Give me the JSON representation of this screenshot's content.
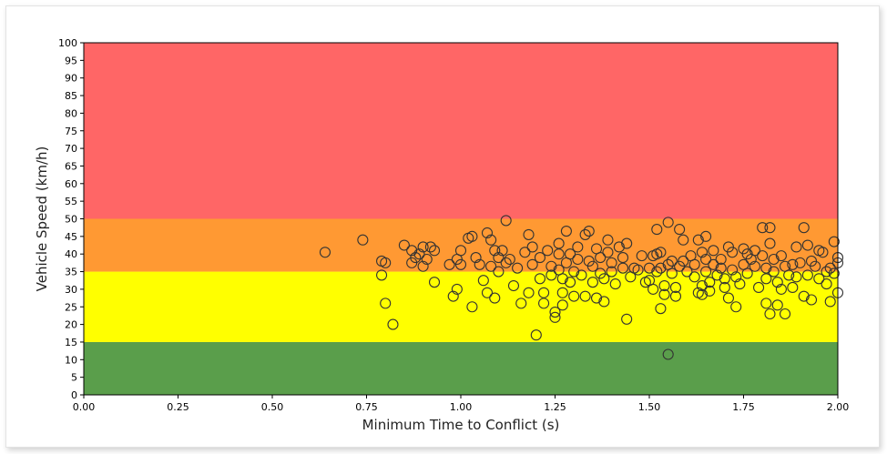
{
  "chart_data": {
    "type": "scatter",
    "title": "",
    "xlabel": "Minimum Time to Conflict (s)",
    "ylabel": "Vehicle Speed (km/h)",
    "xlim": [
      0,
      2
    ],
    "ylim": [
      0,
      100
    ],
    "x_ticks": [
      "0.00",
      "0.25",
      "0.50",
      "0.75",
      "1.00",
      "1.25",
      "1.50",
      "1.75",
      "2.00"
    ],
    "y_ticks": [
      "0",
      "5",
      "10",
      "15",
      "20",
      "25",
      "30",
      "35",
      "40",
      "45",
      "50",
      "55",
      "60",
      "65",
      "70",
      "75",
      "80",
      "85",
      "90",
      "95",
      "100"
    ],
    "grid": false,
    "legend": "none",
    "bands": [
      {
        "from": 0,
        "to": 15,
        "color": "#5a9e4b"
      },
      {
        "from": 15,
        "to": 35,
        "color": "#ffff00"
      },
      {
        "from": 35,
        "to": 50,
        "color": "#ff9933"
      },
      {
        "from": 50,
        "to": 100,
        "color": "#ff6666"
      }
    ],
    "marker": {
      "shape": "open-circle",
      "edge_color": "#333333"
    },
    "points": [
      [
        0.64,
        40.5
      ],
      [
        0.74,
        44
      ],
      [
        0.79,
        38
      ],
      [
        0.79,
        34
      ],
      [
        0.8,
        26
      ],
      [
        0.8,
        37.5
      ],
      [
        0.82,
        20
      ],
      [
        0.85,
        42.5
      ],
      [
        0.87,
        41
      ],
      [
        0.87,
        37.5
      ],
      [
        0.88,
        39
      ],
      [
        0.89,
        40
      ],
      [
        0.9,
        42
      ],
      [
        0.9,
        36.5
      ],
      [
        0.91,
        38.5
      ],
      [
        0.92,
        42
      ],
      [
        0.93,
        41
      ],
      [
        0.93,
        32
      ],
      [
        0.97,
        37
      ],
      [
        0.98,
        28
      ],
      [
        0.99,
        38.5
      ],
      [
        0.99,
        30
      ],
      [
        1.0,
        41
      ],
      [
        1.0,
        37
      ],
      [
        1.02,
        44.5
      ],
      [
        1.03,
        45
      ],
      [
        1.03,
        25
      ],
      [
        1.04,
        39
      ],
      [
        1.05,
        37
      ],
      [
        1.06,
        32.5
      ],
      [
        1.07,
        46
      ],
      [
        1.07,
        29
      ],
      [
        1.08,
        44
      ],
      [
        1.08,
        36.5
      ],
      [
        1.09,
        41
      ],
      [
        1.09,
        27.5
      ],
      [
        1.1,
        39
      ],
      [
        1.1,
        35
      ],
      [
        1.11,
        41
      ],
      [
        1.12,
        49.5
      ],
      [
        1.12,
        37.5
      ],
      [
        1.13,
        38.5
      ],
      [
        1.14,
        31
      ],
      [
        1.15,
        36
      ],
      [
        1.16,
        26
      ],
      [
        1.17,
        40.5
      ],
      [
        1.18,
        45.5
      ],
      [
        1.18,
        29
      ],
      [
        1.19,
        42
      ],
      [
        1.19,
        37
      ],
      [
        1.2,
        17
      ],
      [
        1.21,
        39
      ],
      [
        1.21,
        33
      ],
      [
        1.22,
        29
      ],
      [
        1.22,
        26
      ],
      [
        1.23,
        41
      ],
      [
        1.24,
        36.5
      ],
      [
        1.24,
        34
      ],
      [
        1.25,
        22
      ],
      [
        1.25,
        23.5
      ],
      [
        1.26,
        43
      ],
      [
        1.26,
        40
      ],
      [
        1.26,
        35.5
      ],
      [
        1.27,
        33
      ],
      [
        1.27,
        29
      ],
      [
        1.27,
        25.5
      ],
      [
        1.28,
        46.5
      ],
      [
        1.28,
        37.5
      ],
      [
        1.29,
        40
      ],
      [
        1.29,
        32
      ],
      [
        1.3,
        35
      ],
      [
        1.3,
        28
      ],
      [
        1.31,
        42
      ],
      [
        1.31,
        38.5
      ],
      [
        1.32,
        34
      ],
      [
        1.33,
        45.5
      ],
      [
        1.33,
        28
      ],
      [
        1.34,
        46.5
      ],
      [
        1.34,
        38
      ],
      [
        1.35,
        32
      ],
      [
        1.35,
        36.5
      ],
      [
        1.36,
        41.5
      ],
      [
        1.36,
        27.5
      ],
      [
        1.37,
        39
      ],
      [
        1.37,
        34.5
      ],
      [
        1.38,
        33
      ],
      [
        1.38,
        26.5
      ],
      [
        1.39,
        44
      ],
      [
        1.39,
        40.5
      ],
      [
        1.4,
        37.5
      ],
      [
        1.4,
        35
      ],
      [
        1.41,
        31.5
      ],
      [
        1.42,
        42
      ],
      [
        1.43,
        39
      ],
      [
        1.43,
        36
      ],
      [
        1.44,
        43
      ],
      [
        1.44,
        21.5
      ],
      [
        1.45,
        33.5
      ],
      [
        1.46,
        36
      ],
      [
        1.47,
        35.5
      ],
      [
        1.48,
        39.5
      ],
      [
        1.49,
        32
      ],
      [
        1.5,
        36
      ],
      [
        1.5,
        32.5
      ],
      [
        1.51,
        39.5
      ],
      [
        1.51,
        30
      ],
      [
        1.52,
        40
      ],
      [
        1.52,
        47
      ],
      [
        1.52,
        35
      ],
      [
        1.53,
        40.5
      ],
      [
        1.53,
        36
      ],
      [
        1.53,
        24.5
      ],
      [
        1.54,
        31
      ],
      [
        1.54,
        28.5
      ],
      [
        1.55,
        49
      ],
      [
        1.55,
        37
      ],
      [
        1.55,
        11.5
      ],
      [
        1.56,
        38
      ],
      [
        1.56,
        34.5
      ],
      [
        1.57,
        30.5
      ],
      [
        1.57,
        28
      ],
      [
        1.58,
        47
      ],
      [
        1.58,
        36.5
      ],
      [
        1.59,
        44
      ],
      [
        1.59,
        38
      ],
      [
        1.6,
        35
      ],
      [
        1.61,
        39.5
      ],
      [
        1.62,
        37
      ],
      [
        1.62,
        33.5
      ],
      [
        1.63,
        44
      ],
      [
        1.63,
        29
      ],
      [
        1.64,
        40.5
      ],
      [
        1.64,
        31
      ],
      [
        1.64,
        28.5
      ],
      [
        1.65,
        45
      ],
      [
        1.65,
        38.5
      ],
      [
        1.65,
        35
      ],
      [
        1.66,
        32
      ],
      [
        1.66,
        29.5
      ],
      [
        1.67,
        37
      ],
      [
        1.67,
        41
      ],
      [
        1.68,
        34
      ],
      [
        1.69,
        38.5
      ],
      [
        1.69,
        36
      ],
      [
        1.7,
        33
      ],
      [
        1.7,
        30.5
      ],
      [
        1.71,
        42
      ],
      [
        1.71,
        27.5
      ],
      [
        1.72,
        40.5
      ],
      [
        1.72,
        35.5
      ],
      [
        1.73,
        25
      ],
      [
        1.73,
        33.5
      ],
      [
        1.74,
        31.5
      ],
      [
        1.75,
        37
      ],
      [
        1.75,
        41.5
      ],
      [
        1.76,
        40
      ],
      [
        1.76,
        34.5
      ],
      [
        1.77,
        38.5
      ],
      [
        1.78,
        36.5
      ],
      [
        1.78,
        41
      ],
      [
        1.79,
        30.5
      ],
      [
        1.8,
        47.5
      ],
      [
        1.8,
        39.5
      ],
      [
        1.81,
        36
      ],
      [
        1.81,
        33
      ],
      [
        1.81,
        26
      ],
      [
        1.82,
        47.5
      ],
      [
        1.82,
        43
      ],
      [
        1.82,
        23
      ],
      [
        1.83,
        38.5
      ],
      [
        1.83,
        35
      ],
      [
        1.84,
        32
      ],
      [
        1.84,
        25.5
      ],
      [
        1.85,
        39.5
      ],
      [
        1.85,
        30
      ],
      [
        1.86,
        36.5
      ],
      [
        1.86,
        23
      ],
      [
        1.87,
        34
      ],
      [
        1.88,
        37
      ],
      [
        1.88,
        30.5
      ],
      [
        1.89,
        42
      ],
      [
        1.89,
        33.5
      ],
      [
        1.9,
        37.5
      ],
      [
        1.91,
        47.5
      ],
      [
        1.91,
        28
      ],
      [
        1.92,
        42.5
      ],
      [
        1.92,
        34
      ],
      [
        1.93,
        38
      ],
      [
        1.93,
        27
      ],
      [
        1.94,
        36.5
      ],
      [
        1.95,
        41
      ],
      [
        1.95,
        33
      ],
      [
        1.96,
        40.5
      ],
      [
        1.97,
        35
      ],
      [
        1.97,
        31.5
      ],
      [
        1.98,
        36
      ],
      [
        1.98,
        26.5
      ],
      [
        1.99,
        43.5
      ],
      [
        1.99,
        34.5
      ],
      [
        2.0,
        39
      ],
      [
        2.0,
        29
      ],
      [
        2.0,
        37.5
      ]
    ]
  }
}
